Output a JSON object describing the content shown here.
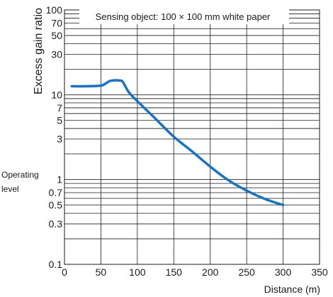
{
  "chart_data": {
    "type": "line",
    "xlabel": "Distance (m)",
    "ylabel": "Excess gain ratio",
    "annotation": "Sensing object: 100 × 100 mm white paper",
    "level_label": "Operating level",
    "level_label_lines": [
      "Operating",
      "level"
    ],
    "y_scale": "log",
    "xlim": [
      0,
      350
    ],
    "ylim": [
      0.1,
      100
    ],
    "x_ticks": [
      0,
      50,
      100,
      150,
      200,
      250,
      300,
      350
    ],
    "x_tick_labels": [
      "0",
      "50",
      "100",
      "150",
      "200",
      "250",
      "300",
      "350"
    ],
    "y_ticks": [
      0.1,
      0.3,
      0.5,
      0.7,
      1,
      3,
      5,
      7,
      10,
      30,
      50,
      70,
      100
    ],
    "y_tick_labels": [
      "0.1",
      "0.3",
      "0.5",
      "0.7",
      "1",
      "3",
      "5",
      "7",
      "10",
      "30",
      "50",
      "70",
      "100"
    ],
    "y_grid": [
      0.1,
      0.2,
      0.3,
      0.4,
      0.5,
      0.6,
      0.7,
      0.8,
      0.9,
      1,
      2,
      3,
      4,
      5,
      6,
      7,
      8,
      9,
      10,
      20,
      30,
      40,
      50,
      60,
      70,
      80,
      90,
      100
    ],
    "grid": true,
    "series": [
      {
        "color": "#1a73c0",
        "x": [
          10,
          30,
          50,
          56,
          62,
          70,
          76,
          80,
          88,
          100,
          125,
          150,
          175,
          200,
          225,
          250,
          275,
          300
        ],
        "y": [
          12.6,
          12.6,
          12.8,
          13.5,
          14.5,
          14.8,
          14.7,
          14.2,
          10.8,
          8.4,
          5.2,
          3.2,
          2.15,
          1.42,
          0.98,
          0.74,
          0.59,
          0.5
        ]
      }
    ]
  }
}
